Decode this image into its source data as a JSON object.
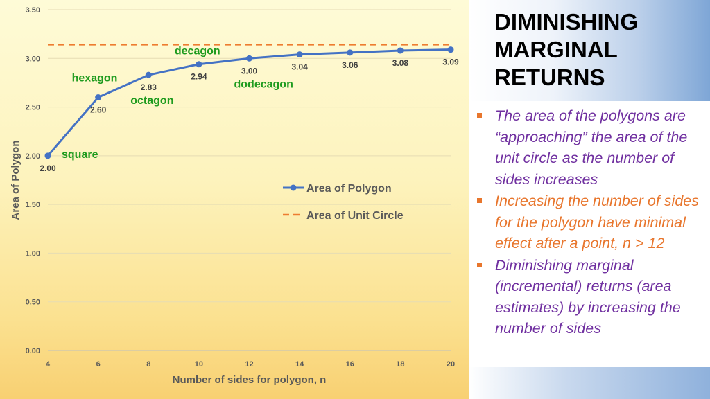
{
  "slide": {
    "title_lines": [
      "DIMINISHING",
      "MARGINAL",
      "RETURNS"
    ],
    "bullets": [
      {
        "text": "The area of the polygons are “approaching”  the area of the unit circle as the number of sides increases",
        "color": "#7030a0"
      },
      {
        "text": "Increasing the number of sides for the polygon have minimal effect after a point, n > 12",
        "color": "#e8762d"
      },
      {
        "text": "Diminishing marginal (incremental) returns (area estimates) by increasing the number of sides",
        "color": "#7030a0"
      }
    ],
    "accent_color": "#e8762d"
  },
  "chart_data": {
    "type": "line",
    "xlabel": "Number of sides for polygon, n",
    "ylabel": "Area of Polygon",
    "x_ticks": [
      4,
      6,
      8,
      10,
      12,
      14,
      16,
      18,
      20
    ],
    "y_ticks": [
      "0.00",
      "0.50",
      "1.00",
      "1.50",
      "2.00",
      "2.50",
      "3.00",
      "3.50"
    ],
    "xlim": [
      4,
      20
    ],
    "ylim": [
      0,
      3.5
    ],
    "grid": "horizontal",
    "legend_position": "center-right",
    "series": [
      {
        "name": "Area of Polygon",
        "style": "solid-with-markers",
        "color": "#4472c4",
        "x": [
          4,
          6,
          8,
          10,
          12,
          14,
          16,
          18,
          20
        ],
        "y": [
          2.0,
          2.6,
          2.83,
          2.94,
          3.0,
          3.04,
          3.06,
          3.08,
          3.09
        ],
        "labels": [
          "2.00",
          "2.60",
          "2.83",
          "2.94",
          "3.00",
          "3.04",
          "3.06",
          "3.08",
          "3.09"
        ]
      },
      {
        "name": "Area of Unit Circle",
        "style": "dashed",
        "color": "#ed7d31",
        "x": [
          4,
          20
        ],
        "y": [
          3.14159,
          3.14159
        ]
      }
    ],
    "annotations": [
      {
        "text": "square",
        "x": 4,
        "y": 2.0
      },
      {
        "text": "hexagon",
        "x": 6,
        "y": 2.6
      },
      {
        "text": "octagon",
        "x": 8,
        "y": 2.83
      },
      {
        "text": "decagon",
        "x": 10,
        "y": 2.94
      },
      {
        "text": "dodecagon",
        "x": 12,
        "y": 3.0
      }
    ],
    "annotation_color": "#1e9b1e"
  }
}
